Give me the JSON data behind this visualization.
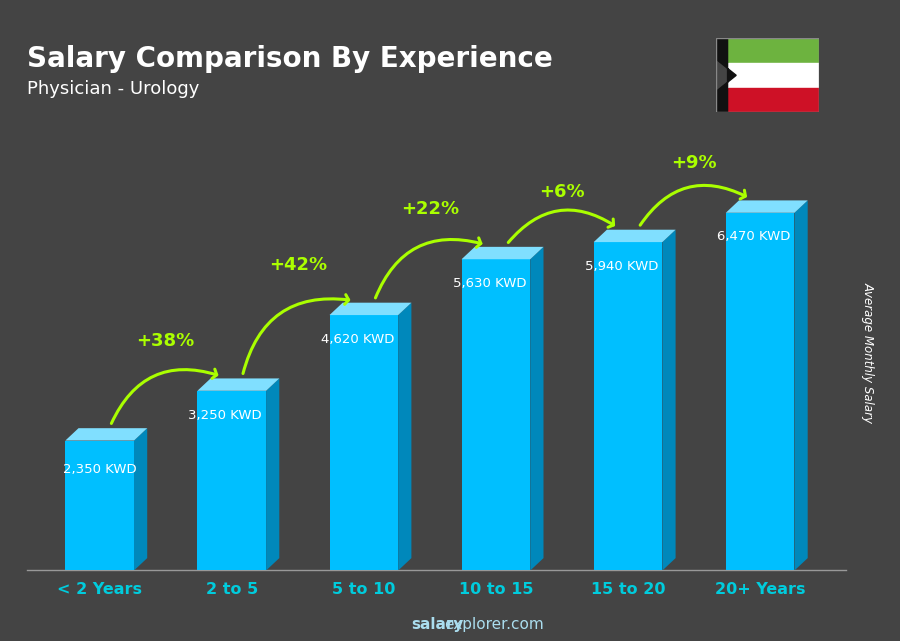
{
  "title": "Salary Comparison By Experience",
  "subtitle": "Physician - Urology",
  "categories": [
    "< 2 Years",
    "2 to 5",
    "5 to 10",
    "10 to 15",
    "15 to 20",
    "20+ Years"
  ],
  "values": [
    2350,
    3250,
    4620,
    5630,
    5940,
    6470
  ],
  "bar_color_face": "#00BFFF",
  "bar_color_light": "#80DFFF",
  "bar_color_dark": "#0088BB",
  "bg_color": "#666666",
  "title_color": "#FFFFFF",
  "subtitle_color": "#FFFFFF",
  "tick_color": "#00CCDD",
  "label_color": "#FFFFFF",
  "ylabel_text": "Average Monthly Salary",
  "footer_salary": "salary",
  "footer_rest": "explorer.com",
  "percent_labels": [
    "+38%",
    "+42%",
    "+22%",
    "+6%",
    "+9%"
  ],
  "percent_color": "#AAFF00",
  "arrow_color": "#AAFF00",
  "value_labels": [
    "2,350 KWD",
    "3,250 KWD",
    "4,620 KWD",
    "5,630 KWD",
    "5,940 KWD",
    "6,470 KWD"
  ],
  "ylim": [
    0,
    8000
  ],
  "flag_green": "#6DB33F",
  "flag_white": "#FFFFFF",
  "flag_red": "#CE1126",
  "flag_black": "#111111"
}
